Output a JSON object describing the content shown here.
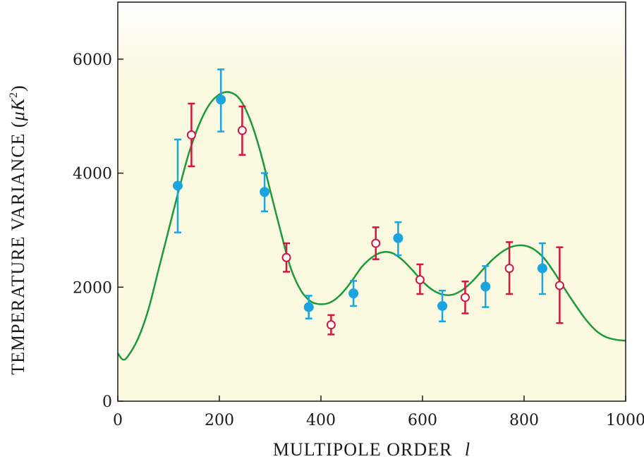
{
  "chart_data": {
    "type": "scatter",
    "xlabel": "MULTIPOLE ORDER",
    "xlabel_symbol": "l",
    "ylabel": "TEMPERATURE VARIANCE (",
    "ylabel_unit": "μK",
    "ylabel_exp": "2",
    "ylabel_close": ")",
    "xlim": [
      0,
      1000
    ],
    "ylim": [
      0,
      7000
    ],
    "x_ticks": [
      0,
      200,
      400,
      600,
      800,
      1000
    ],
    "y_ticks": [
      0,
      2000,
      4000,
      6000
    ],
    "grid": false,
    "background_color": "#fcf9e1",
    "series": [
      {
        "marker": "filled-circle",
        "color": "#1aa5e0",
        "points": [
          {
            "x": 118,
            "y": 3780,
            "lo": 2960,
            "hi": 4590
          },
          {
            "x": 203,
            "y": 5290,
            "lo": 4730,
            "hi": 5820
          },
          {
            "x": 289,
            "y": 3670,
            "lo": 3330,
            "hi": 4000
          },
          {
            "x": 376,
            "y": 1650,
            "lo": 1450,
            "hi": 1850
          },
          {
            "x": 464,
            "y": 1890,
            "lo": 1670,
            "hi": 2110
          },
          {
            "x": 552,
            "y": 2860,
            "lo": 2560,
            "hi": 3140
          },
          {
            "x": 639,
            "y": 1670,
            "lo": 1400,
            "hi": 1940
          },
          {
            "x": 724,
            "y": 2010,
            "lo": 1650,
            "hi": 2370
          },
          {
            "x": 836,
            "y": 2330,
            "lo": 1880,
            "hi": 2770
          }
        ]
      },
      {
        "marker": "open-circle",
        "color": "#d1173e",
        "points": [
          {
            "x": 145,
            "y": 4670,
            "lo": 4120,
            "hi": 5220
          },
          {
            "x": 245,
            "y": 4750,
            "lo": 4320,
            "hi": 5170
          },
          {
            "x": 332,
            "y": 2520,
            "lo": 2270,
            "hi": 2770
          },
          {
            "x": 420,
            "y": 1340,
            "lo": 1170,
            "hi": 1510
          },
          {
            "x": 508,
            "y": 2770,
            "lo": 2490,
            "hi": 3050
          },
          {
            "x": 595,
            "y": 2130,
            "lo": 1880,
            "hi": 2400
          },
          {
            "x": 684,
            "y": 1820,
            "lo": 1540,
            "hi": 2100
          },
          {
            "x": 771,
            "y": 2330,
            "lo": 1880,
            "hi": 2790
          },
          {
            "x": 870,
            "y": 2030,
            "lo": 1370,
            "hi": 2700
          }
        ]
      }
    ],
    "model_curve": {
      "color": "#1a9a3a",
      "points": [
        [
          0,
          840
        ],
        [
          10,
          730
        ],
        [
          20,
          790
        ],
        [
          40,
          1100
        ],
        [
          60,
          1600
        ],
        [
          80,
          2300
        ],
        [
          100,
          3000
        ],
        [
          120,
          3700
        ],
        [
          140,
          4350
        ],
        [
          160,
          4850
        ],
        [
          180,
          5200
        ],
        [
          200,
          5380
        ],
        [
          220,
          5420
        ],
        [
          240,
          5300
        ],
        [
          260,
          4950
        ],
        [
          280,
          4400
        ],
        [
          300,
          3700
        ],
        [
          320,
          3000
        ],
        [
          340,
          2350
        ],
        [
          360,
          1950
        ],
        [
          380,
          1750
        ],
        [
          400,
          1700
        ],
        [
          420,
          1740
        ],
        [
          440,
          1880
        ],
        [
          460,
          2100
        ],
        [
          480,
          2350
        ],
        [
          500,
          2520
        ],
        [
          520,
          2610
        ],
        [
          540,
          2600
        ],
        [
          560,
          2480
        ],
        [
          580,
          2300
        ],
        [
          600,
          2100
        ],
        [
          620,
          1950
        ],
        [
          640,
          1870
        ],
        [
          660,
          1870
        ],
        [
          680,
          1960
        ],
        [
          700,
          2120
        ],
        [
          720,
          2320
        ],
        [
          740,
          2500
        ],
        [
          760,
          2640
        ],
        [
          780,
          2720
        ],
        [
          800,
          2730
        ],
        [
          820,
          2660
        ],
        [
          840,
          2500
        ],
        [
          860,
          2250
        ],
        [
          880,
          1970
        ],
        [
          900,
          1700
        ],
        [
          920,
          1450
        ],
        [
          940,
          1250
        ],
        [
          960,
          1130
        ],
        [
          980,
          1080
        ],
        [
          1000,
          1060
        ]
      ]
    }
  }
}
